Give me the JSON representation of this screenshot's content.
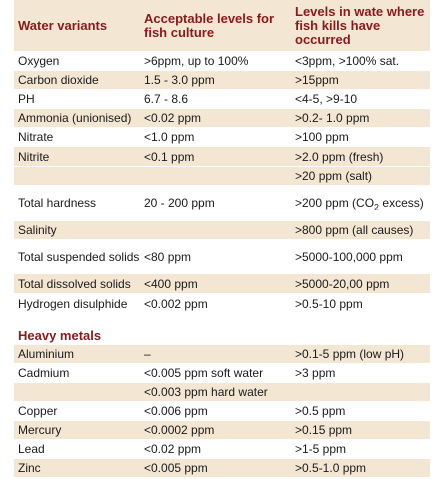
{
  "headers": {
    "col1": "Water variants",
    "col2": "Acceptable levels for fish culture",
    "col3": "Levels in wate where fish kills have occurred"
  },
  "rows": [
    {
      "variant": "Oxygen",
      "acceptable": ">6ppm, up to 100%",
      "kills": "<3ppm, >100% sat."
    },
    {
      "variant": "Carbon dioxide",
      "acceptable": "1.5 - 3.0 ppm",
      "kills": ">15ppm"
    },
    {
      "variant": "PH",
      "acceptable": "6.7 - 8.6",
      "kills": "<4-5, >9-10"
    },
    {
      "variant": "Ammonia (unionised)",
      "acceptable": "<0.02 ppm",
      "kills": ">0.2- 1.0 ppm"
    },
    {
      "variant": "Nitrate",
      "acceptable": "<1.0 ppm",
      "kills": ">100 ppm"
    },
    {
      "variant": "Nitrite",
      "acceptable": "<0.1 ppm",
      "kills": ">2.0 ppm (fresh)"
    },
    {
      "variant": "",
      "acceptable": "",
      "kills": ">20 ppm (salt)"
    },
    {
      "variant": "Total hardness",
      "acceptable": "20 - 200 ppm",
      "kills_pre": ">200 ppm (CO",
      "kills_sub": "2",
      "kills_post": " excess)"
    },
    {
      "variant": "Salinity",
      "acceptable": "",
      "kills": ">800 ppm (all causes)"
    },
    {
      "variant": "Total suspended solids",
      "acceptable": "<80 ppm",
      "kills": ">5000-100,000 ppm"
    },
    {
      "variant": "Total dissolved solids",
      "acceptable": "<400 ppm",
      "kills": ">5000-20,00 ppm"
    },
    {
      "variant": "Hydrogen disulphide",
      "acceptable": "<0.002 ppm",
      "kills": ">0.5-10 ppm"
    }
  ],
  "heavy_metals": {
    "title": "Heavy metals",
    "rows": [
      {
        "variant": "Aluminium",
        "acceptable": "–",
        "kills": ">0.1-5 ppm (low pH)"
      },
      {
        "variant": "Cadmium",
        "acceptable": "<0.005 ppm soft water",
        "kills": ">3 ppm"
      },
      {
        "variant": "",
        "acceptable": "<0.003 ppm hard water",
        "kills": ""
      },
      {
        "variant": "Copper",
        "acceptable": "<0.006 ppm",
        "kills": ">0.5 ppm"
      },
      {
        "variant": "Mercury",
        "acceptable": "<0.0002 ppm",
        "kills": ">0.15 ppm"
      },
      {
        "variant": "Lead",
        "acceptable": "<0.02 ppm",
        "kills": ">1-5 ppm"
      },
      {
        "variant": "Zinc",
        "acceptable": "<0.005 ppm",
        "kills": ">0.5-1.0 ppm"
      }
    ]
  }
}
